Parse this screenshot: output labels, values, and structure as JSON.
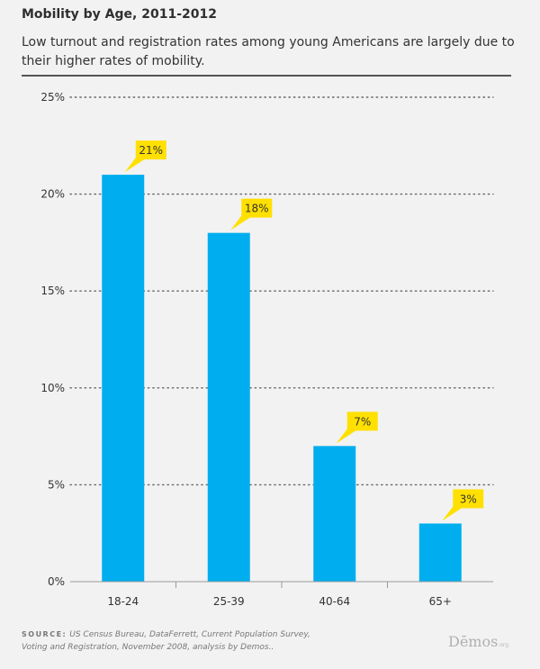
{
  "header": {
    "title": "Mobility by Age, 2011-2012",
    "subtitle": "Low turnout and registration rates among young Americans are largely due to their higher rates of mobility."
  },
  "chart_data": {
    "type": "bar",
    "categories": [
      "18-24",
      "25-39",
      "40-64",
      "65+"
    ],
    "values": [
      21,
      18,
      7,
      3
    ],
    "data_labels": [
      "21%",
      "18%",
      "7%",
      "3%"
    ],
    "y_ticks": [
      0,
      5,
      10,
      15,
      20,
      25
    ],
    "y_tick_labels": [
      "0%",
      "5%",
      "10%",
      "15%",
      "20%",
      "25%"
    ],
    "ylim": [
      0,
      25
    ],
    "grid": true,
    "legend": "none"
  },
  "footer": {
    "source_label": "SOURCE:",
    "source_text": "US Census Bureau, DataFerrett, Current Population Survey, Voting and Registration, November 2008, analysis by Demos..",
    "logo_text": "Dēmos",
    "logo_suffix": ".org"
  },
  "colors": {
    "bar": "#00aeef",
    "callout": "#ffe000",
    "grid": "#666666",
    "axis": "#999999",
    "text": "#333333"
  }
}
